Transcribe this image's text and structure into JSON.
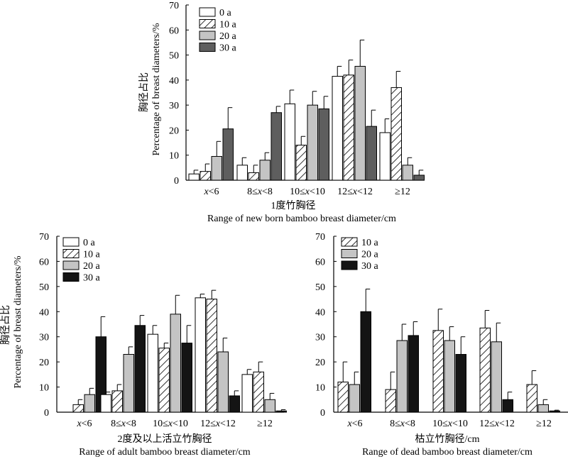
{
  "chart_data": [
    {
      "type": "bar",
      "ylabel_cn": "胸径占比",
      "ylabel_en": "Percentage of breast diameters/%",
      "xlabel_cn": "1度竹胸径",
      "xlabel_en": "Range of new born bamboo breast diameter/cm",
      "ylim": [
        0,
        70
      ],
      "yticks": [
        "0",
        "10",
        "20",
        "30",
        "40",
        "50",
        "60",
        "70"
      ],
      "categories": [
        "x<6",
        "8≤x<8",
        "10≤x<10",
        "12≤x<12",
        "≥12"
      ],
      "series": [
        {
          "name": "0 a",
          "pattern": "white",
          "values": [
            2.5,
            6,
            30.5,
            41.5,
            19
          ],
          "errors": [
            1.5,
            3,
            5.5,
            4,
            5.5
          ]
        },
        {
          "name": "10 a",
          "pattern": "hatch",
          "values": [
            3.5,
            3,
            14,
            42,
            37
          ],
          "errors": [
            3,
            3,
            3.5,
            6,
            6.5
          ]
        },
        {
          "name": "20 a",
          "pattern": "light-gray",
          "values": [
            9.5,
            8,
            30,
            45.5,
            6
          ],
          "errors": [
            6,
            3,
            5.5,
            10.5,
            3
          ]
        },
        {
          "name": "30 a",
          "pattern": "dark-gray",
          "values": [
            20.5,
            27,
            28.5,
            21.5,
            2
          ],
          "errors": [
            8.5,
            2.5,
            5,
            6.5,
            2
          ]
        }
      ]
    },
    {
      "type": "bar",
      "ylabel_cn": "胸径占比",
      "ylabel_en": "Percentage of breast diameters/%",
      "xlabel_cn": "2度及以上活立竹胸径",
      "xlabel_en": "Range of adult bamboo breast diameter/cm",
      "ylim": [
        0,
        70
      ],
      "yticks": [
        "0",
        "10",
        "20",
        "30",
        "40",
        "50",
        "60",
        "70"
      ],
      "categories": [
        "x<6",
        "8≤x<8",
        "10≤x<10",
        "12≤x<12",
        "≥12"
      ],
      "series": [
        {
          "name": "0 a",
          "pattern": "white",
          "values": [
            0,
            7,
            31,
            45.5,
            15
          ],
          "errors": [
            0,
            1,
            3.5,
            1.5,
            2
          ]
        },
        {
          "name": "10 a",
          "pattern": "hatch",
          "values": [
            3,
            8.5,
            25.5,
            45,
            16
          ],
          "errors": [
            2,
            2.5,
            2,
            3.5,
            4
          ]
        },
        {
          "name": "20 a",
          "pattern": "light-gray",
          "values": [
            7,
            23,
            39,
            24,
            5
          ],
          "errors": [
            2.5,
            3,
            7.5,
            5.5,
            2.5
          ]
        },
        {
          "name": "30 a",
          "pattern": "black",
          "values": [
            30,
            34.5,
            27.5,
            6.5,
            0.5
          ],
          "errors": [
            8,
            4,
            7,
            2,
            0.5
          ]
        }
      ]
    },
    {
      "type": "bar",
      "xlabel_cn": "枯立竹胸径/cm",
      "xlabel_en": "Range of dead bamboo breast diameter/cm",
      "ylim": [
        0,
        70
      ],
      "yticks": [
        "0",
        "10",
        "20",
        "30",
        "40",
        "50",
        "60",
        "70"
      ],
      "categories": [
        "x<6",
        "8≤x<8",
        "10≤x<10",
        "12≤x<12",
        "≥12"
      ],
      "series": [
        {
          "name": "10 a",
          "pattern": "hatch",
          "values": [
            12,
            9,
            32.5,
            33.5,
            11
          ],
          "errors": [
            8,
            7,
            8.5,
            7,
            5.5
          ]
        },
        {
          "name": "20 a",
          "pattern": "light-gray",
          "values": [
            11,
            28.5,
            28.5,
            28,
            3
          ],
          "errors": [
            5,
            6.5,
            5.5,
            7.5,
            2
          ]
        },
        {
          "name": "30 a",
          "pattern": "black",
          "values": [
            40,
            30.5,
            23,
            5,
            0.5
          ],
          "errors": [
            9,
            5.5,
            7,
            3,
            0.3
          ]
        }
      ]
    }
  ]
}
